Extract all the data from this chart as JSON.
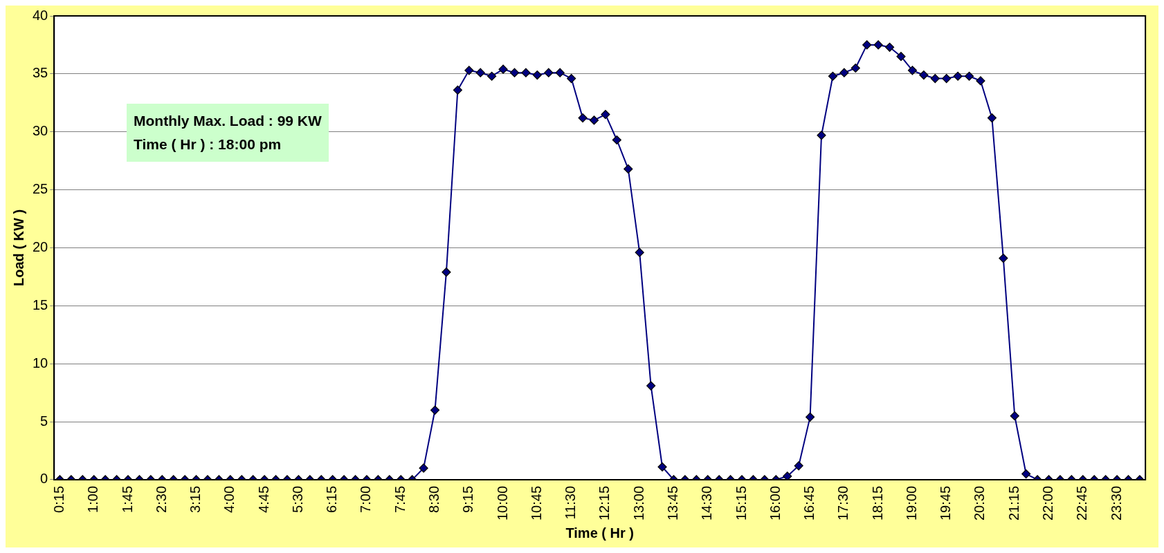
{
  "chart_data": {
    "type": "line",
    "xlabel": "Time ( Hr )",
    "ylabel": "Load ( KW )",
    "categories": [
      "0:15",
      null,
      null,
      "1:00",
      null,
      null,
      "1:45",
      null,
      null,
      "2:30",
      null,
      null,
      "3:15",
      null,
      null,
      "4:00",
      null,
      null,
      "4:45",
      null,
      null,
      "5:30",
      null,
      null,
      "6:15",
      null,
      null,
      "7:00",
      null,
      null,
      "7:45",
      null,
      null,
      "8:30",
      null,
      null,
      "9:15",
      null,
      null,
      "10:00",
      null,
      null,
      "10:45",
      null,
      null,
      "11:30",
      null,
      null,
      "12:15",
      null,
      null,
      "13:00",
      null,
      null,
      "13:45",
      null,
      null,
      "14:30",
      null,
      null,
      "15:15",
      null,
      null,
      "16:00",
      null,
      null,
      "16:45",
      null,
      null,
      "17:30",
      null,
      null,
      "18:15",
      null,
      null,
      "19:00",
      null,
      null,
      "19:45",
      null,
      null,
      "20:30",
      null,
      null,
      "21:15",
      null,
      null,
      "22:00",
      null,
      null,
      "22:45",
      null,
      null,
      "23:30",
      null,
      null
    ],
    "series": [
      {
        "color": "#000080",
        "values": [
          0,
          0,
          0,
          0,
          0,
          0,
          0,
          0,
          0,
          0,
          0,
          0,
          0,
          0,
          0,
          0,
          0,
          0,
          0,
          0,
          0,
          0,
          0,
          0,
          0,
          0,
          0,
          0,
          0,
          0,
          0,
          0,
          1.0,
          6.0,
          17.9,
          33.6,
          35.3,
          35.1,
          34.8,
          35.4,
          35.1,
          35.1,
          34.9,
          35.1,
          35.1,
          34.6,
          31.2,
          31.0,
          31.5,
          29.3,
          26.8,
          19.6,
          8.1,
          1.1,
          0,
          0,
          0,
          0,
          0,
          0,
          0,
          0,
          0,
          0,
          0.3,
          1.2,
          5.4,
          29.7,
          34.8,
          35.1,
          35.5,
          37.5,
          37.5,
          37.3,
          36.5,
          35.3,
          34.9,
          34.6,
          34.6,
          34.8,
          34.8,
          34.4,
          31.2,
          19.1,
          5.5,
          0.5,
          0,
          0,
          0,
          0,
          0,
          0,
          0,
          0,
          0,
          0
        ]
      }
    ],
    "ylim": [
      0,
      40
    ],
    "yticks": [
      0,
      5,
      10,
      15,
      20,
      25,
      30,
      35,
      40
    ],
    "grid": "y",
    "legend": false,
    "marker": "diamond",
    "line_style": "solid",
    "annotations": [
      "Monthly Max. Load : 99 KW",
      "Time ( Hr ) : 18:00 pm"
    ]
  }
}
